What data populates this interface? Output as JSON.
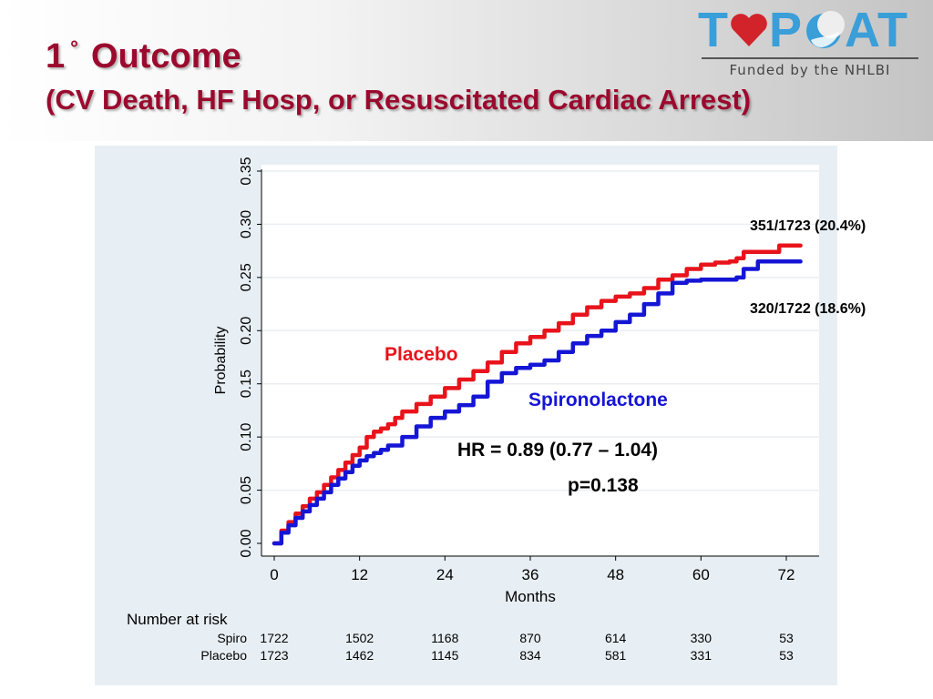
{
  "slide": {
    "title_main": "Outcome",
    "title_number": "1",
    "title_degree": "°",
    "title_sub": "(CV Death, HF Hosp, or Resuscitated Cardiac Arrest)"
  },
  "logo": {
    "letters_left": "T",
    "letters_mid": "P",
    "letters_right": "AT",
    "funded": "Funded by the NHLBI",
    "colors": {
      "word": "#3a9ed8",
      "heart": "#d2232a",
      "text": "#444444"
    },
    "icons": [
      "heart-icon",
      "moon-crescent-icon"
    ]
  },
  "chart_data": {
    "type": "line",
    "style": "step",
    "xlabel": "Months",
    "ylabel": "Probability",
    "xlim": [
      0,
      75
    ],
    "ylim": [
      0,
      0.35
    ],
    "xticks": [
      0,
      12,
      24,
      36,
      48,
      60,
      72
    ],
    "xtick_labels": [
      "0",
      "12",
      "24",
      "36",
      "48",
      "60",
      "72"
    ],
    "yticks": [
      0,
      0.05,
      0.1,
      0.15,
      0.2,
      0.25,
      0.3,
      0.35
    ],
    "ytick_labels": [
      "0.00",
      "0.05",
      "0.10",
      "0.15",
      "0.20",
      "0.25",
      "0.30",
      "0.35"
    ],
    "grid": "horizontal",
    "series": [
      {
        "name": "Placebo",
        "color": "#e8131b",
        "x": [
          0,
          1,
          2,
          3,
          4,
          5,
          6,
          7,
          8,
          9,
          10,
          11,
          12,
          13,
          14,
          15,
          16,
          17,
          18,
          20,
          22,
          24,
          26,
          28,
          30,
          32,
          34,
          36,
          38,
          40,
          42,
          44,
          46,
          48,
          50,
          52,
          54,
          56,
          58,
          60,
          62,
          64,
          65,
          66,
          68,
          70,
          71,
          74
        ],
        "y": [
          0,
          0.012,
          0.02,
          0.028,
          0.035,
          0.042,
          0.048,
          0.055,
          0.062,
          0.069,
          0.076,
          0.083,
          0.09,
          0.1,
          0.105,
          0.108,
          0.112,
          0.118,
          0.124,
          0.131,
          0.138,
          0.146,
          0.154,
          0.162,
          0.17,
          0.18,
          0.188,
          0.194,
          0.2,
          0.207,
          0.215,
          0.222,
          0.228,
          0.232,
          0.235,
          0.24,
          0.248,
          0.252,
          0.258,
          0.262,
          0.264,
          0.265,
          0.268,
          0.274,
          0.274,
          0.274,
          0.28,
          0.28
        ]
      },
      {
        "name": "Spironolactone",
        "color": "#1515d6",
        "x": [
          0,
          1,
          2,
          3,
          4,
          5,
          6,
          7,
          8,
          9,
          10,
          11,
          12,
          13,
          14,
          15,
          16,
          18,
          20,
          22,
          24,
          26,
          28,
          30,
          32,
          34,
          36,
          38,
          40,
          42,
          44,
          46,
          48,
          50,
          52,
          54,
          56,
          58,
          60,
          62,
          64,
          65,
          66,
          68,
          70,
          72,
          74
        ],
        "y": [
          0,
          0.01,
          0.017,
          0.024,
          0.03,
          0.036,
          0.042,
          0.048,
          0.055,
          0.061,
          0.067,
          0.073,
          0.078,
          0.082,
          0.085,
          0.088,
          0.092,
          0.1,
          0.11,
          0.118,
          0.124,
          0.13,
          0.138,
          0.152,
          0.16,
          0.165,
          0.168,
          0.172,
          0.18,
          0.188,
          0.195,
          0.2,
          0.208,
          0.215,
          0.225,
          0.235,
          0.245,
          0.247,
          0.248,
          0.248,
          0.248,
          0.25,
          0.258,
          0.265,
          0.265,
          0.265,
          0.265
        ]
      }
    ],
    "curve_labels": {
      "placebo": "Placebo",
      "spiro": "Spironolactone"
    },
    "annotations": {
      "placebo_events": "351/1723 (20.4%)",
      "spiro_events": "320/1722 (18.6%)",
      "hr": "HR = 0.89 (0.77 – 1.04)",
      "p": "p=0.138"
    },
    "risk_table": {
      "title": "Number at risk",
      "rows": [
        {
          "label": "Spiro",
          "values": [
            "1722",
            "1502",
            "1168",
            "870",
            "614",
            "330",
            "53"
          ]
        },
        {
          "label": "Placebo",
          "values": [
            "1723",
            "1462",
            "1145",
            "834",
            "581",
            "331",
            "53"
          ]
        }
      ]
    }
  }
}
